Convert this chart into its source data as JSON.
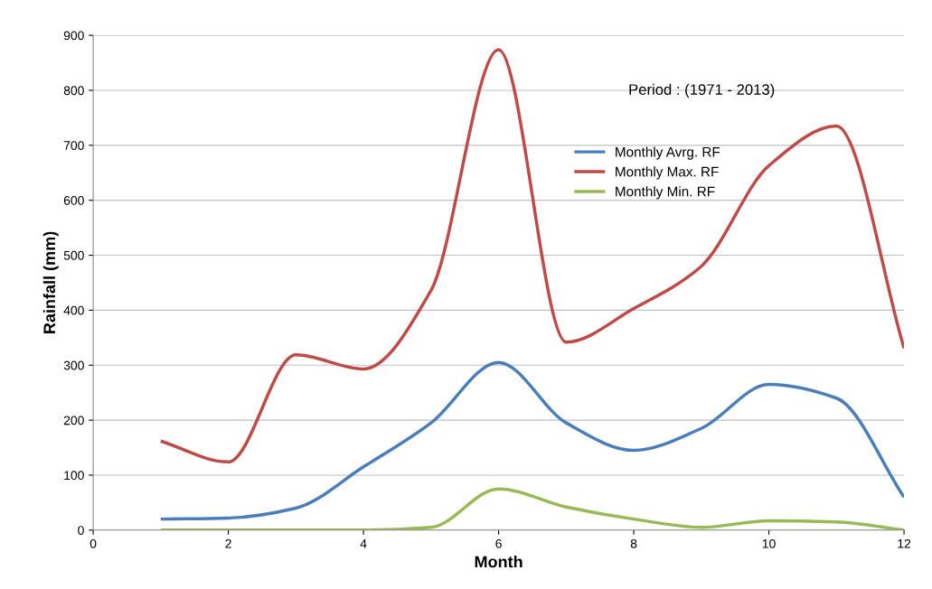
{
  "chart_data": {
    "type": "line",
    "xlabel": "Month",
    "ylabel": "Rainfall (mm)",
    "x": [
      1,
      2,
      3,
      4,
      5,
      6,
      7,
      8,
      9,
      10,
      11,
      12
    ],
    "series": [
      {
        "name": "Monthly Avrg. RF",
        "color": "#4a7ebb",
        "values": [
          20,
          22,
          40,
          115,
          195,
          305,
          195,
          145,
          185,
          265,
          240,
          60
        ]
      },
      {
        "name": "Monthly Max. RF",
        "color": "#be4b48",
        "values": [
          162,
          124,
          319,
          293,
          436,
          874,
          342,
          403,
          480,
          663,
          735,
          331
        ]
      },
      {
        "name": "Monthly Min. RF",
        "color": "#98b954",
        "values": [
          0,
          0,
          0,
          0,
          5,
          75,
          42,
          20,
          5,
          17,
          15,
          0
        ]
      }
    ],
    "xlim": [
      0,
      12
    ],
    "xticks": [
      0,
      2,
      4,
      6,
      8,
      10,
      12
    ],
    "ylim": [
      0,
      900
    ],
    "yticks": [
      0,
      100,
      200,
      300,
      400,
      500,
      600,
      700,
      800,
      900
    ],
    "grid": "y",
    "legend": "top right",
    "marker": "none",
    "line_style": "solid",
    "annotations": [
      "Period : (1971 - 2013)"
    ]
  }
}
